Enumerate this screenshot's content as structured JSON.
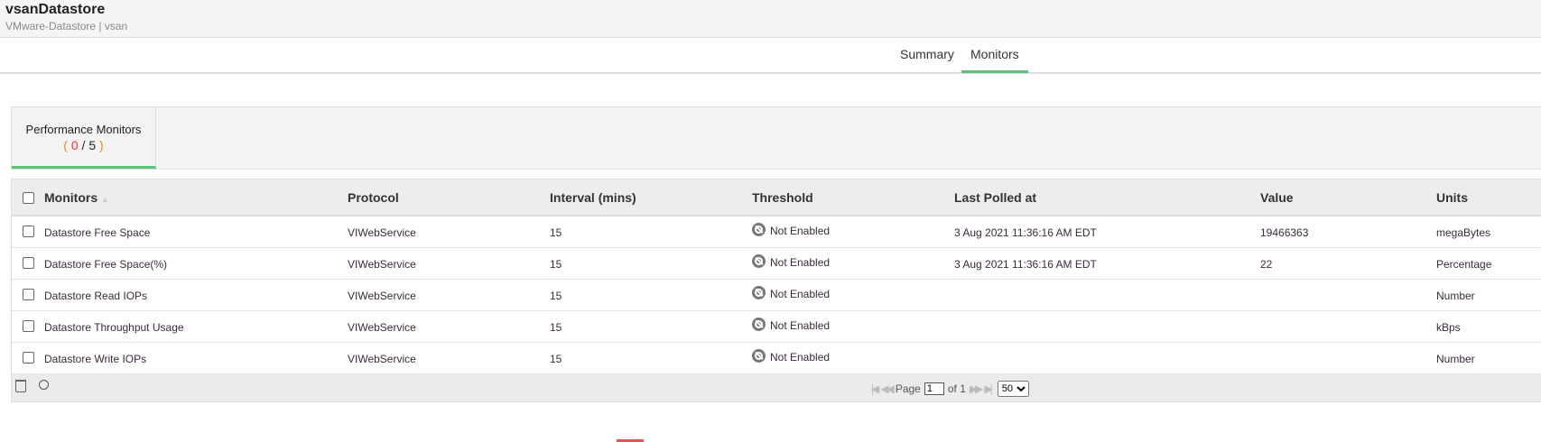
{
  "header": {
    "title": "vsanDatastore",
    "subtitle": "VMware-Datastore | vsan"
  },
  "tabs": [
    {
      "label": "Summary",
      "active": false
    },
    {
      "label": "Monitors",
      "active": true
    }
  ],
  "perf_tab": {
    "label": "Performance Monitors",
    "enabled": "0",
    "total": "5",
    "open": "(",
    "sep": "/",
    "close": ")"
  },
  "table": {
    "columns": [
      "Monitors",
      "Protocol",
      "Interval (mins)",
      "Threshold",
      "Last Polled at",
      "Value",
      "Units"
    ],
    "rows": [
      {
        "monitor": "Datastore Free Space",
        "protocol": "VIWebService",
        "interval": "15",
        "threshold": "Not Enabled",
        "last_polled": "3 Aug 2021 11:36:16 AM EDT",
        "value": "19466363",
        "units": "megaBytes"
      },
      {
        "monitor": "Datastore Free Space(%)",
        "protocol": "VIWebService",
        "interval": "15",
        "threshold": "Not Enabled",
        "last_polled": "3 Aug 2021 11:36:16 AM EDT",
        "value": "22",
        "units": "Percentage"
      },
      {
        "monitor": "Datastore Read IOPs",
        "protocol": "VIWebService",
        "interval": "15",
        "threshold": "Not Enabled",
        "last_polled": "",
        "value": "",
        "units": "Number"
      },
      {
        "monitor": "Datastore Throughput Usage",
        "protocol": "VIWebService",
        "interval": "15",
        "threshold": "Not Enabled",
        "last_polled": "",
        "value": "",
        "units": "kBps"
      },
      {
        "monitor": "Datastore Write IOPs",
        "protocol": "VIWebService",
        "interval": "15",
        "threshold": "Not Enabled",
        "last_polled": "",
        "value": "",
        "units": "Number"
      }
    ]
  },
  "pagination": {
    "page_label": "Page",
    "page": "1",
    "of_label": "of 1",
    "page_size": "50"
  }
}
